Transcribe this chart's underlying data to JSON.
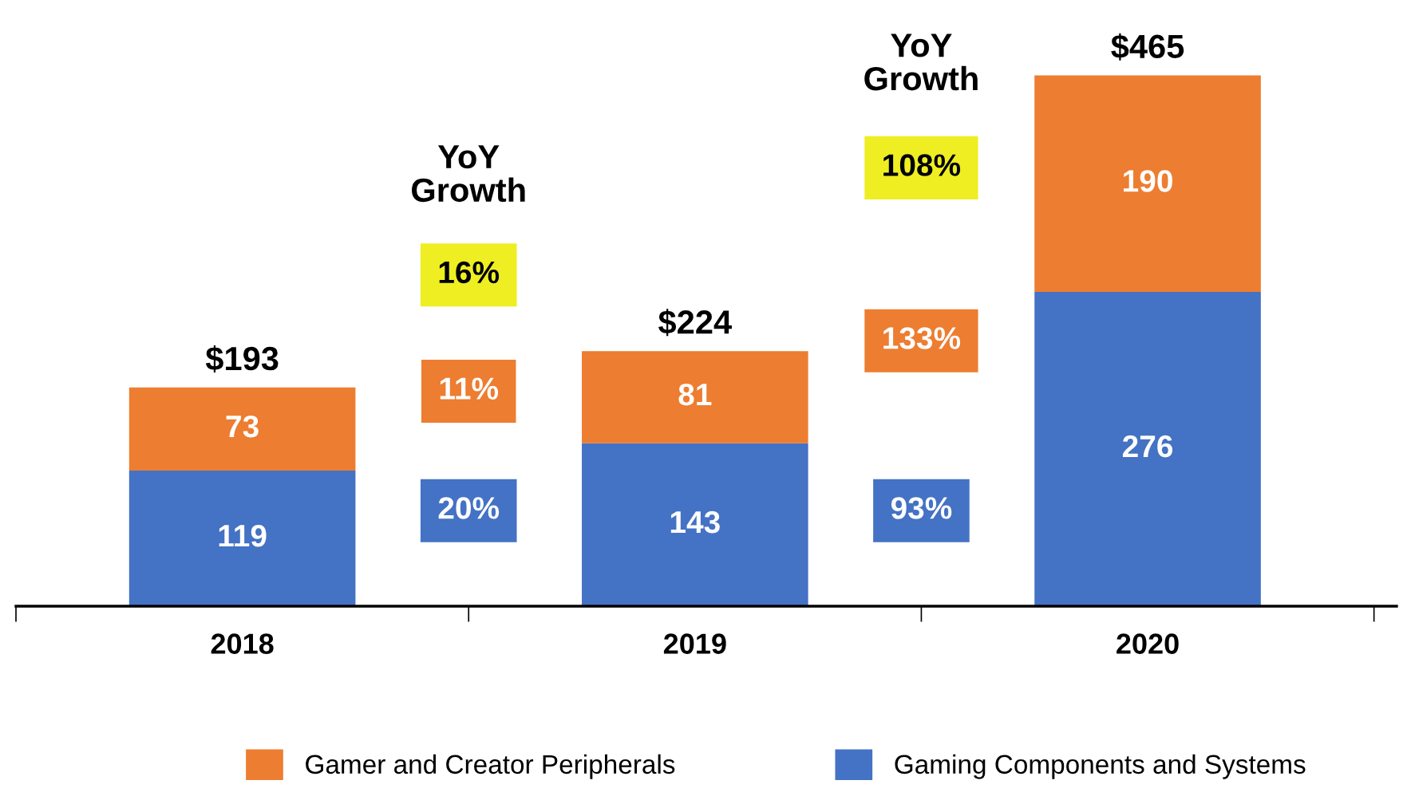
{
  "chart_data": {
    "type": "bar",
    "stacked": true,
    "categories": [
      "2018",
      "2019",
      "2020"
    ],
    "series": [
      {
        "name": "Gaming Components and Systems",
        "color": "#4472c4",
        "values": [
          119,
          143,
          276
        ]
      },
      {
        "name": "Gamer and Creator Peripherals",
        "color": "#ed7d31",
        "values": [
          73,
          81,
          190
        ]
      }
    ],
    "data_labels": true,
    "totals": [
      "$193",
      "$224",
      "$465"
    ],
    "annotations": [
      "YoY\nGrowth",
      "16%",
      "11%",
      "20%",
      "YoY\nGrowth",
      "108%",
      "133%",
      "93%"
    ],
    "legend": "bottom",
    "grid": false
  }
}
